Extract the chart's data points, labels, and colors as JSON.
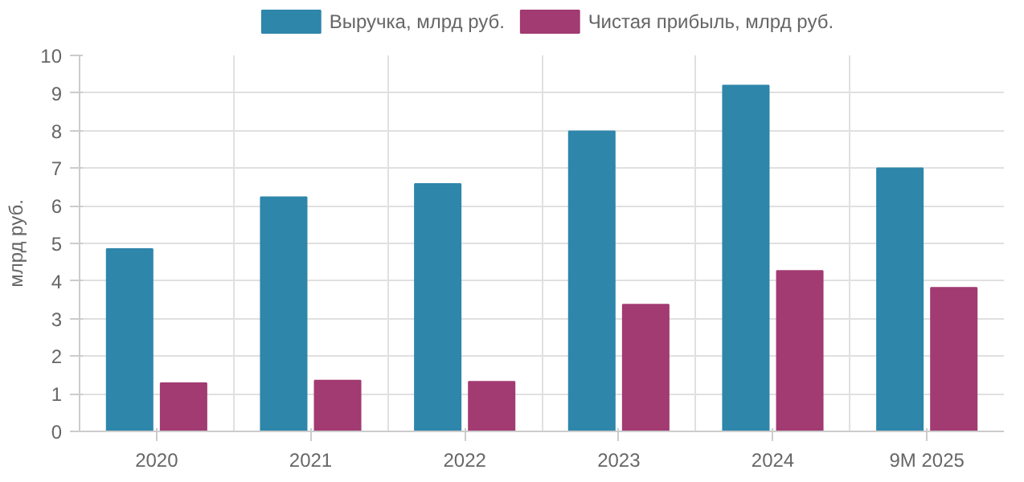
{
  "chart_data": {
    "type": "bar",
    "ylabel": "млрд руб.",
    "categories": [
      "2020",
      "2021",
      "2022",
      "2023",
      "2024",
      "9M 2025"
    ],
    "series": [
      {
        "name": "Выручка, млрд руб.",
        "color": "#2e86ab",
        "values": [
          4.85,
          6.23,
          6.58,
          7.98,
          9.2,
          7.0
        ]
      },
      {
        "name": "Чистая прибыль, млрд руб.",
        "color": "#a23b72",
        "values": [
          1.28,
          1.35,
          1.32,
          3.37,
          4.27,
          3.82
        ]
      }
    ],
    "ylim": [
      0,
      10
    ],
    "yticks": [
      0,
      1,
      2,
      3,
      4,
      5,
      6,
      7,
      8,
      9,
      10
    ],
    "grid": true,
    "legend": "top"
  }
}
